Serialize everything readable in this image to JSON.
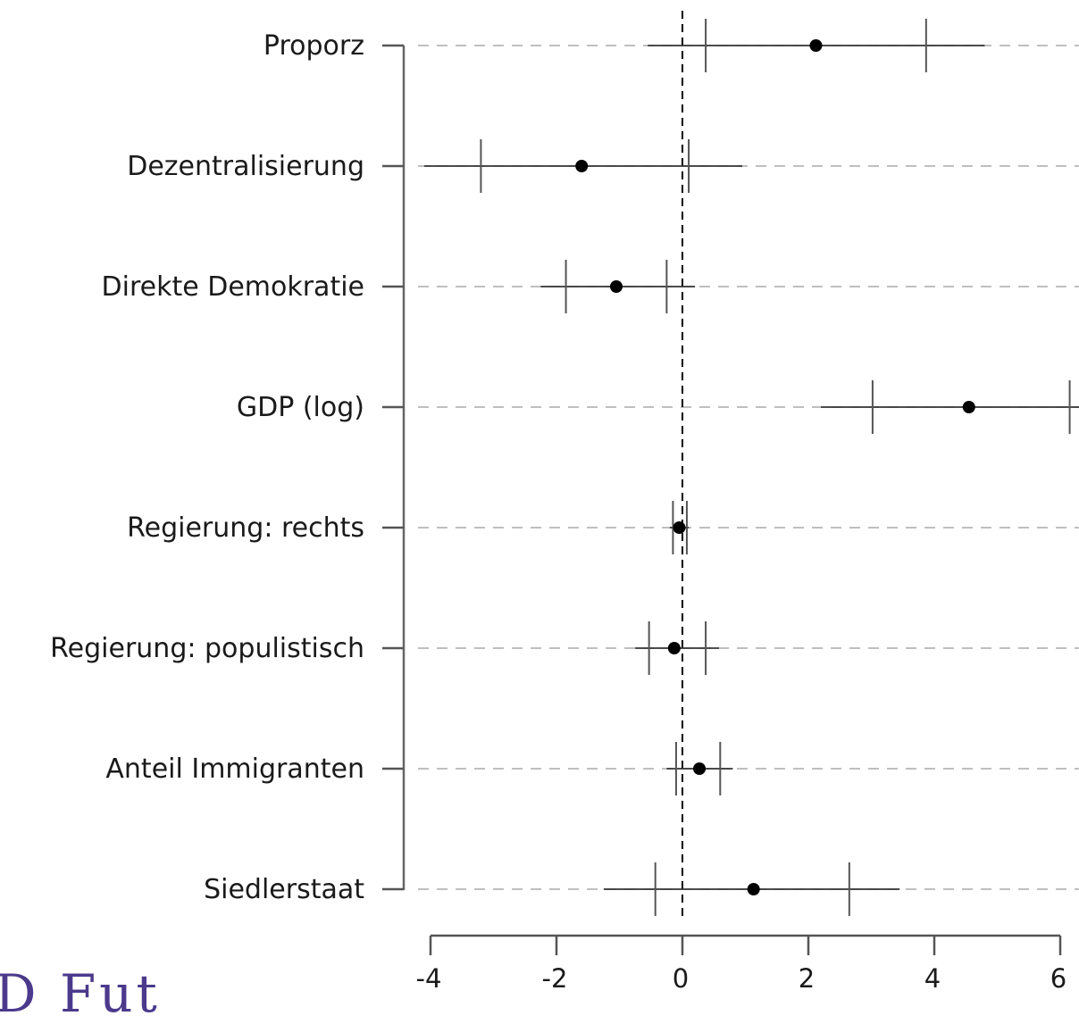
{
  "chart_data": {
    "type": "coefficient-plot",
    "title": "",
    "xlabel": "",
    "ylabel": "",
    "xlim": [
      -4.2,
      6.3
    ],
    "xticks": [
      -4,
      -2,
      0,
      2,
      4,
      6
    ],
    "xtick_labels": [
      "-4",
      "-2",
      "0",
      "2",
      "4",
      "6"
    ],
    "reference_line": 0,
    "grid": "horizontal dashed",
    "series": [
      {
        "label": "Proporz",
        "estimate": 2.12,
        "ci_inner": [
          0.37,
          3.87
        ],
        "ci_outer": [
          -0.55,
          4.8
        ]
      },
      {
        "label": "Dezentralisierung",
        "estimate": -1.6,
        "ci_inner": [
          -3.2,
          0.1
        ],
        "ci_outer": [
          -4.1,
          0.95
        ]
      },
      {
        "label": "Direkte Demokratie",
        "estimate": -1.05,
        "ci_inner": [
          -1.85,
          -0.25
        ],
        "ci_outer": [
          -2.25,
          0.2
        ]
      },
      {
        "label": "GDP (log)",
        "estimate": 4.55,
        "ci_inner": [
          3.02,
          6.15
        ],
        "ci_outer": [
          2.2,
          6.3
        ]
      },
      {
        "label": "Regierung: rechts",
        "estimate": -0.05,
        "ci_inner": [
          -0.15,
          0.07
        ],
        "ci_outer": [
          -0.2,
          0.1
        ]
      },
      {
        "label": "Regierung: populistisch",
        "estimate": -0.13,
        "ci_inner": [
          -0.53,
          0.37
        ],
        "ci_outer": [
          -0.75,
          0.58
        ]
      },
      {
        "label": "Anteil Immigranten",
        "estimate": 0.27,
        "ci_inner": [
          -0.1,
          0.6
        ],
        "ci_outer": [
          -0.25,
          0.8
        ]
      },
      {
        "label": "Siedlerstaat",
        "estimate": 1.13,
        "ci_inner": [
          -0.43,
          2.65
        ],
        "ci_outer": [
          -1.25,
          3.45
        ]
      }
    ]
  },
  "brand": {
    "text": "D Fut"
  }
}
